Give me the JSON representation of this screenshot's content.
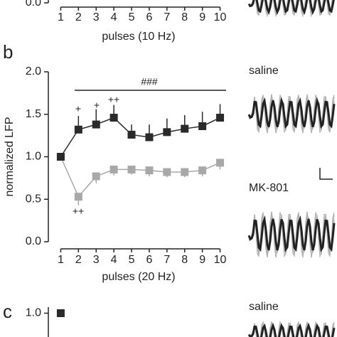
{
  "chart_data": [
    {
      "type": "line",
      "xlabel": "pulses (10 Hz)",
      "xlim": [
        0.3,
        10.5
      ],
      "xticks": [
        1,
        2,
        3,
        4,
        5,
        6,
        7,
        8,
        9,
        10
      ],
      "ylim": [
        0,
        2
      ],
      "yticks": [
        {
          "value": 0,
          "label": "0.0"
        }
      ],
      "series": [],
      "trace_labels": []
    },
    {
      "type": "line",
      "panel": "b",
      "ylabel": "normalized LFP",
      "xlabel": "pulses (20 Hz)",
      "x": [
        1,
        2,
        3,
        4,
        5,
        6,
        7,
        8,
        9,
        10
      ],
      "xlim": [
        0.3,
        10.5
      ],
      "xticks": [
        1,
        2,
        3,
        4,
        5,
        6,
        7,
        8,
        9,
        10
      ],
      "ylim": [
        0,
        2
      ],
      "yticks": [
        {
          "value": 0,
          "label": "0.0"
        },
        0.5,
        {
          "value": 1,
          "label": "1.0"
        },
        1.5,
        {
          "value": 2,
          "label": "2.0"
        }
      ],
      "series": [
        {
          "color": "#a8a8a8",
          "error_side": "down",
          "values": [
            1.0,
            0.53,
            0.77,
            0.85,
            0.85,
            0.84,
            0.82,
            0.82,
            0.84,
            0.93
          ],
          "errors": [
            0,
            0.1,
            0.08,
            0.07,
            0.06,
            0.07,
            0.06,
            0.06,
            0.07,
            0.08
          ]
        },
        {
          "color": "#2a2a2a",
          "error_side": "up",
          "values": [
            1.0,
            1.32,
            1.38,
            1.46,
            1.26,
            1.23,
            1.29,
            1.33,
            1.36,
            1.46
          ],
          "errors": [
            0,
            0.16,
            0.18,
            0.15,
            0.12,
            0.15,
            0.16,
            0.16,
            0.17,
            0.16
          ]
        }
      ],
      "annotations": [
        "###",
        "+",
        "+",
        "++",
        "++"
      ],
      "trace_labels": [
        "saline",
        "MK-801"
      ]
    },
    {
      "type": "line",
      "panel": "c",
      "x": [
        1
      ],
      "xlim": [
        0.3,
        10.5
      ],
      "ylim": [
        0,
        2
      ],
      "yticks": [
        {
          "value": 1,
          "label": "1.0"
        }
      ],
      "series": [
        {
          "color": "#2a2a2a",
          "values": [
            1.0
          ]
        }
      ],
      "trace_labels": [
        "saline"
      ]
    }
  ]
}
